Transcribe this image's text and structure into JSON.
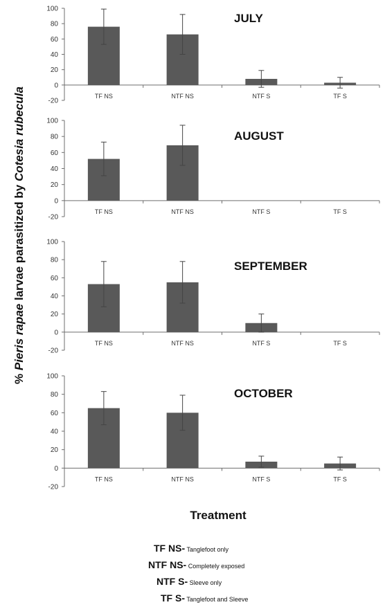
{
  "ylabel_parts": {
    "prefix": "% ",
    "species": "Pieris rapae",
    "middle": " larvae parasitized by ",
    "parasitoid": "Cotesia rubecula"
  },
  "xlabel": "Treatment",
  "chart_data": [
    {
      "type": "bar",
      "title": "JULY",
      "categories": [
        "TF NS",
        "NTF NS",
        "NTF S",
        "TF S"
      ],
      "values": [
        76,
        66,
        8,
        3
      ],
      "errors": [
        23,
        26,
        11,
        7
      ],
      "ylim": [
        -20,
        100
      ],
      "yticks": [
        -20,
        0,
        20,
        40,
        60,
        80,
        100
      ]
    },
    {
      "type": "bar",
      "title": "AUGUST",
      "categories": [
        "TF NS",
        "NTF NS",
        "NTF S",
        "TF S"
      ],
      "values": [
        52,
        69,
        0,
        0
      ],
      "errors": [
        21,
        25,
        0,
        0
      ],
      "ylim": [
        -20,
        100
      ],
      "yticks": [
        -20,
        0,
        20,
        40,
        60,
        80,
        100
      ]
    },
    {
      "type": "bar",
      "title": "SEPTEMBER",
      "categories": [
        "TF NS",
        "NTF NS",
        "NTF S",
        "TF S"
      ],
      "values": [
        53,
        55,
        10,
        0
      ],
      "errors": [
        25,
        23,
        10,
        0
      ],
      "ylim": [
        -20,
        100
      ],
      "yticks": [
        -20,
        0,
        20,
        40,
        60,
        80,
        100
      ]
    },
    {
      "type": "bar",
      "title": "OCTOBER",
      "categories": [
        "TF NS",
        "NTF NS",
        "NTF S",
        "TF S"
      ],
      "values": [
        65,
        60,
        7,
        5
      ],
      "errors": [
        18,
        19,
        6,
        7
      ],
      "ylim": [
        -20,
        100
      ],
      "yticks": [
        -20,
        0,
        20,
        40,
        60,
        80,
        100
      ]
    }
  ],
  "legend": [
    {
      "code": "TF NS-",
      "desc": " Tanglefoot only"
    },
    {
      "code": "NTF NS-",
      "desc": " Completely exposed"
    },
    {
      "code": "NTF S-",
      "desc": " Sleeve only"
    },
    {
      "code": "TF S-",
      "desc": " Tanglefoot and Sleeve"
    }
  ],
  "colors": {
    "bar": "#595959",
    "axis": "#6e6e6e",
    "text": "#111111"
  }
}
